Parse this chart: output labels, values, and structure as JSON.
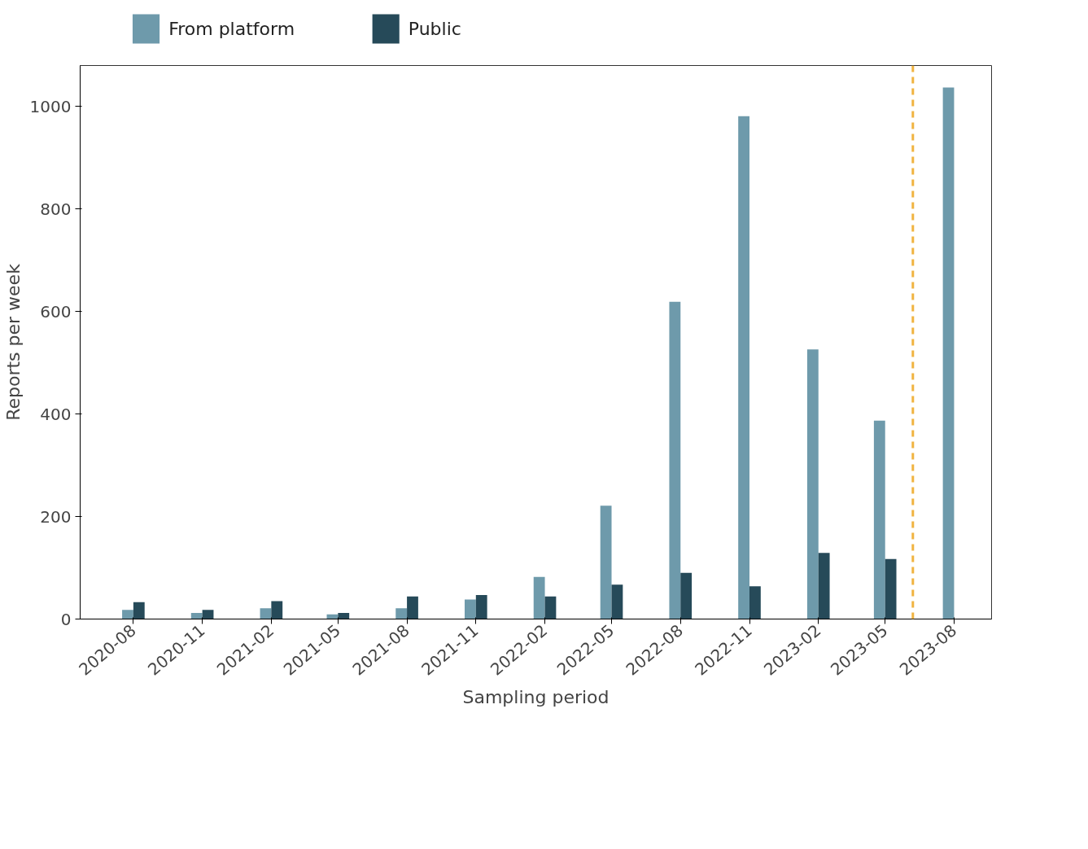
{
  "chart_data": {
    "type": "bar",
    "xlabel": "Sampling period",
    "ylabel": "Reports per week",
    "x": [
      "2020-08",
      "2020-11",
      "2021-02",
      "2021-05",
      "2021-08",
      "2021-11",
      "2022-02",
      "2022-05",
      "2022-08",
      "2022-11",
      "2023-02",
      "2023-05",
      "2023-08"
    ],
    "series": [
      {
        "name": "From platform",
        "color": "#6e9aab",
        "values": [
          18,
          12,
          21,
          9,
          21,
          38,
          82,
          221,
          619,
          981,
          526,
          387,
          1037
        ]
      },
      {
        "name": "Public",
        "color": "#264a59",
        "values": [
          33,
          18,
          35,
          12,
          44,
          47,
          44,
          67,
          90,
          64,
          129,
          117,
          null
        ]
      }
    ],
    "xlim": [
      "2020-05-22",
      "2023-09-20"
    ],
    "xticks": [
      "2020-08",
      "2020-11",
      "2021-02",
      "2021-05",
      "2021-08",
      "2021-11",
      "2022-02",
      "2022-05",
      "2022-08",
      "2022-11",
      "2023-02",
      "2023-05",
      "2023-08"
    ],
    "ylim": [
      0,
      1080
    ],
    "yticks": [
      0,
      200,
      400,
      600,
      800,
      1000
    ],
    "grid": false,
    "legend": "top left",
    "ref_lines": [
      {
        "axis": "x",
        "value": "2023-06-07",
        "color": "#f0b340",
        "line_style": "dashed"
      }
    ]
  }
}
